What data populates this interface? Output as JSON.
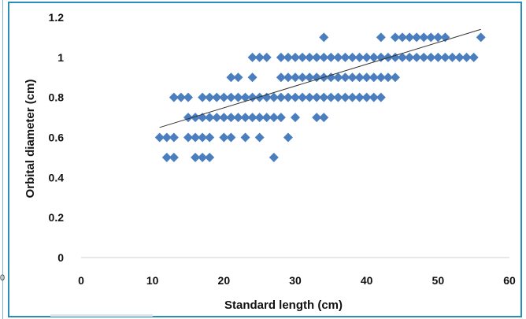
{
  "chart_data": {
    "type": "scatter",
    "title": "",
    "xlabel": "Standard length (cm)",
    "ylabel": "Orbital diameter (cm)",
    "xlim": [
      0,
      60
    ],
    "ylim": [
      0,
      1.2
    ],
    "x_ticks": [
      "0",
      "10",
      "20",
      "30",
      "40",
      "50",
      "60"
    ],
    "y_ticks": [
      "0",
      "0.2",
      "0.4",
      "0.6",
      "0.8",
      "1",
      "1.2"
    ],
    "grid": false,
    "legend": "none",
    "marker": "diamond",
    "marker_color": "#4a7ebf",
    "trendline": {
      "type": "linear",
      "from": [
        11,
        0.65
      ],
      "to": [
        56,
        1.14
      ],
      "color": "#333333"
    },
    "points": [
      [
        11,
        0.6
      ],
      [
        12,
        0.6
      ],
      [
        13,
        0.6
      ],
      [
        12,
        0.5
      ],
      [
        13,
        0.5
      ],
      [
        13,
        0.8
      ],
      [
        14,
        0.8
      ],
      [
        15,
        0.8
      ],
      [
        15,
        0.7
      ],
      [
        16,
        0.7
      ],
      [
        17,
        0.7
      ],
      [
        18,
        0.7
      ],
      [
        19,
        0.7
      ],
      [
        15,
        0.6
      ],
      [
        16,
        0.6
      ],
      [
        17,
        0.6
      ],
      [
        18,
        0.6
      ],
      [
        20,
        0.6
      ],
      [
        21,
        0.6
      ],
      [
        23,
        0.6
      ],
      [
        25,
        0.6
      ],
      [
        29,
        0.6
      ],
      [
        16,
        0.5
      ],
      [
        17,
        0.5
      ],
      [
        18,
        0.5
      ],
      [
        27,
        0.5
      ],
      [
        17,
        0.8
      ],
      [
        18,
        0.8
      ],
      [
        19,
        0.8
      ],
      [
        20,
        0.8
      ],
      [
        21,
        0.8
      ],
      [
        22,
        0.8
      ],
      [
        23,
        0.8
      ],
      [
        24,
        0.8
      ],
      [
        25,
        0.8
      ],
      [
        26,
        0.8
      ],
      [
        27,
        0.8
      ],
      [
        28,
        0.8
      ],
      [
        29,
        0.8
      ],
      [
        30,
        0.8
      ],
      [
        31,
        0.8
      ],
      [
        32,
        0.8
      ],
      [
        33,
        0.8
      ],
      [
        34,
        0.8
      ],
      [
        35,
        0.8
      ],
      [
        36,
        0.8
      ],
      [
        37,
        0.8
      ],
      [
        38,
        0.8
      ],
      [
        39,
        0.8
      ],
      [
        40,
        0.8
      ],
      [
        41,
        0.8
      ],
      [
        42,
        0.8
      ],
      [
        20,
        0.7
      ],
      [
        21,
        0.7
      ],
      [
        22,
        0.7
      ],
      [
        23,
        0.7
      ],
      [
        24,
        0.7
      ],
      [
        25,
        0.7
      ],
      [
        26,
        0.7
      ],
      [
        27,
        0.7
      ],
      [
        28,
        0.7
      ],
      [
        30,
        0.7
      ],
      [
        33,
        0.7
      ],
      [
        34,
        0.7
      ],
      [
        21,
        0.9
      ],
      [
        22,
        0.9
      ],
      [
        24,
        0.9
      ],
      [
        28,
        0.9
      ],
      [
        29,
        0.9
      ],
      [
        30,
        0.9
      ],
      [
        31,
        0.9
      ],
      [
        32,
        0.9
      ],
      [
        33,
        0.9
      ],
      [
        34,
        0.9
      ],
      [
        35,
        0.9
      ],
      [
        36,
        0.9
      ],
      [
        37,
        0.9
      ],
      [
        38,
        0.9
      ],
      [
        39,
        0.9
      ],
      [
        40,
        0.9
      ],
      [
        41,
        0.9
      ],
      [
        42,
        0.9
      ],
      [
        43,
        0.9
      ],
      [
        44,
        0.9
      ],
      [
        24,
        1.0
      ],
      [
        25,
        1.0
      ],
      [
        26,
        1.0
      ],
      [
        28,
        1.0
      ],
      [
        29,
        1.0
      ],
      [
        30,
        1.0
      ],
      [
        31,
        1.0
      ],
      [
        32,
        1.0
      ],
      [
        33,
        1.0
      ],
      [
        34,
        1.0
      ],
      [
        35,
        1.0
      ],
      [
        36,
        1.0
      ],
      [
        37,
        1.0
      ],
      [
        38,
        1.0
      ],
      [
        39,
        1.0
      ],
      [
        40,
        1.0
      ],
      [
        41,
        1.0
      ],
      [
        42,
        1.0
      ],
      [
        43,
        1.0
      ],
      [
        44,
        1.0
      ],
      [
        45,
        1.0
      ],
      [
        46,
        1.0
      ],
      [
        47,
        1.0
      ],
      [
        48,
        1.0
      ],
      [
        49,
        1.0
      ],
      [
        50,
        1.0
      ],
      [
        51,
        1.0
      ],
      [
        52,
        1.0
      ],
      [
        53,
        1.0
      ],
      [
        54,
        1.0
      ],
      [
        55,
        1.0
      ],
      [
        34,
        1.1
      ],
      [
        42,
        1.1
      ],
      [
        44,
        1.1
      ],
      [
        45,
        1.1
      ],
      [
        46,
        1.1
      ],
      [
        47,
        1.1
      ],
      [
        48,
        1.1
      ],
      [
        49,
        1.1
      ],
      [
        50,
        1.1
      ],
      [
        51,
        1.1
      ],
      [
        56,
        1.1
      ]
    ]
  }
}
